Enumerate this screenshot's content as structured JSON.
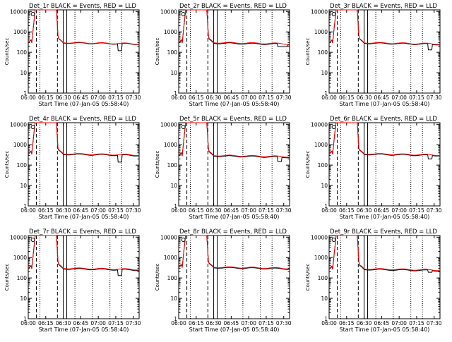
{
  "chart_data": {
    "common": {
      "type": "line",
      "xlabel": "Start Time (07-Jan-05 05:58:40)",
      "ylabel": "Counts/sec",
      "x_ticks": [
        "06:00",
        "06:15",
        "06:30",
        "06:45",
        "07:00",
        "07:15",
        "07:30"
      ],
      "y_ticks": [
        "1",
        "10",
        "100",
        "1000",
        "10000"
      ],
      "x_range_minutes_after_06_00": [
        0,
        95
      ],
      "ylim": [
        1,
        12000
      ],
      "y_scale": "log",
      "series": [
        {
          "key": "events",
          "name": "Events",
          "color": "#000000"
        },
        {
          "key": "lld",
          "name": "LLD",
          "color": "#ff0000"
        }
      ],
      "colors": {
        "events": "#000000",
        "lld": "#ff0000"
      }
    },
    "panels": [
      {
        "title": "Det_1r BLACK = Events, RED = LLD",
        "baseline_events": 290,
        "baseline_lld": 300,
        "dip_at_minute": 77,
        "dip_value": 120,
        "dip_length": 3
      },
      {
        "title": "Det_2r BLACK = Events, RED = LLD",
        "baseline_events": 280,
        "baseline_lld": 300,
        "dip_at_minute": 85,
        "dip_value": 190,
        "dip_length": 8
      },
      {
        "title": "Det_3r BLACK = Events, RED = LLD",
        "baseline_events": 280,
        "baseline_lld": 295,
        "dip_at_minute": 85,
        "dip_value": 130,
        "dip_length": 3
      },
      {
        "title": "Det_4r BLACK = Events, RED = LLD",
        "baseline_events": 340,
        "baseline_lld": 360,
        "dip_at_minute": 77,
        "dip_value": 140,
        "dip_length": 3
      },
      {
        "title": "Det_5r BLACK = Events, RED = LLD",
        "baseline_events": 280,
        "baseline_lld": 300,
        "dip_at_minute": 85,
        "dip_value": 150,
        "dip_length": 3
      },
      {
        "title": "Det_6r BLACK = Events, RED = LLD",
        "baseline_events": 340,
        "baseline_lld": 360,
        "dip_at_minute": 85,
        "dip_value": 200,
        "dip_length": 3
      },
      {
        "title": "Det_7r BLACK = Events, RED = LLD",
        "baseline_events": 280,
        "baseline_lld": 300,
        "dip_at_minute": 77,
        "dip_value": 130,
        "dip_length": 3
      },
      {
        "title": "Det_8r BLACK = Events, RED = LLD",
        "baseline_events": 320,
        "baseline_lld": 340,
        "dip_at_minute": 0,
        "dip_value": 0,
        "dip_length": 0
      },
      {
        "title": "Det_9r BLACK = Events, RED = LLD",
        "baseline_events": 260,
        "baseline_lld": 280,
        "dip_at_minute": 85,
        "dip_value": 190,
        "dip_length": 3
      }
    ],
    "vertical_markers_minutes": {
      "dashed": [
        7,
        25
      ],
      "solid": [
        30,
        33
      ],
      "dotted_at_tick_quarters": true
    }
  }
}
